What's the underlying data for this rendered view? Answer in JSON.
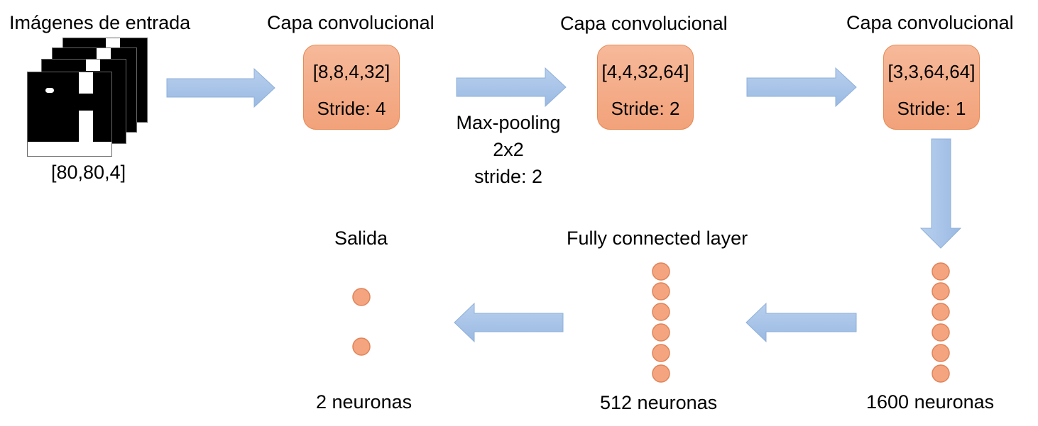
{
  "input": {
    "title": "Imágenes de entrada",
    "shape": "[80,80,4]"
  },
  "conv1": {
    "title": "Capa convolucional",
    "dims": "[8,8,4,32]",
    "stride": "Stride: 4"
  },
  "pool": {
    "line1": "Max-pooling",
    "line2": "2x2",
    "line3": "stride: 2"
  },
  "conv2": {
    "title": "Capa convolucional",
    "dims": "[4,4,32,64]",
    "stride": "Stride: 2"
  },
  "conv3": {
    "title": "Capa convolucional",
    "dims": "[3,3,64,64]",
    "stride": "Stride: 1"
  },
  "flat": {
    "label": "1600 neuronas"
  },
  "fc": {
    "title": "Fully connected layer",
    "label": "512 neuronas"
  },
  "output": {
    "title": "Salida",
    "label": "2 neuronas"
  },
  "colors": {
    "arrow_fill": "#a9c5e8",
    "arrow_stroke": "#8fb0d9",
    "node_fill": "#f4a57f",
    "node_stroke": "#e0845a"
  }
}
